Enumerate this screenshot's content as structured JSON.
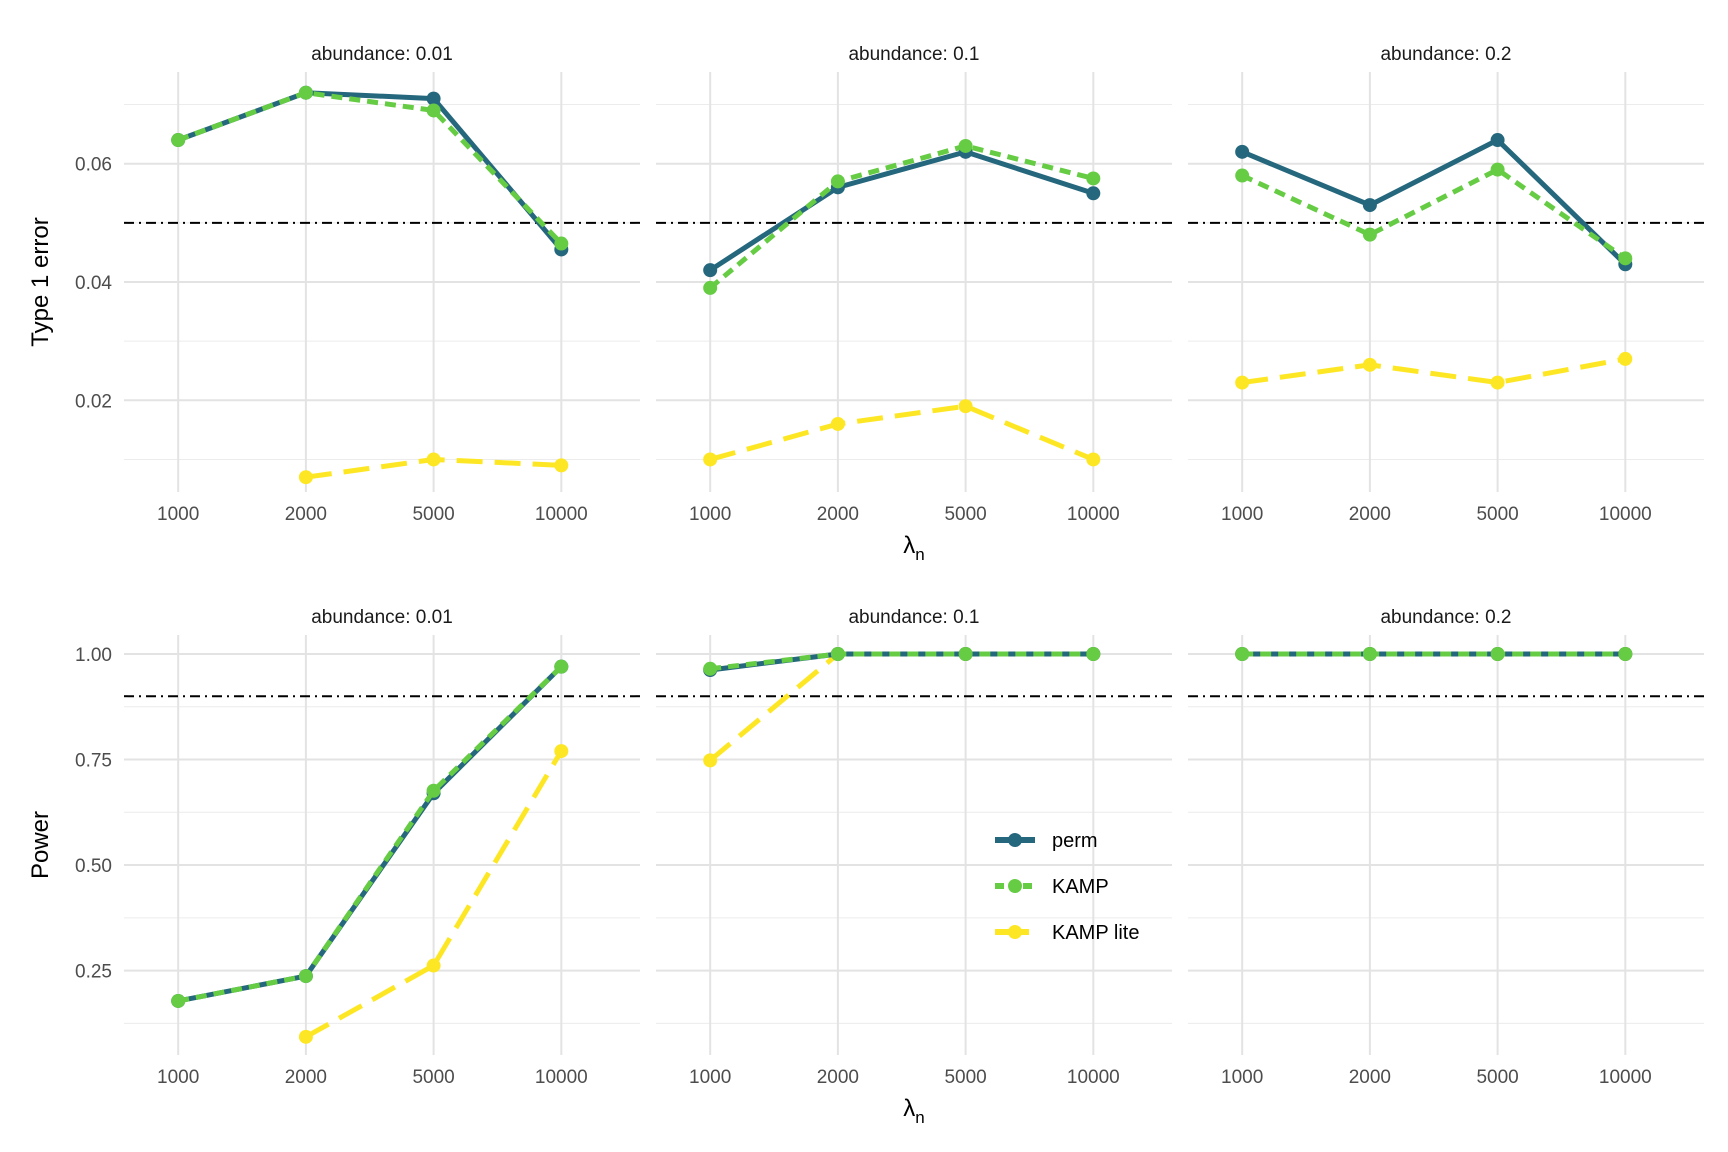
{
  "chart_data": {
    "type": "line",
    "x_categories": [
      "1000",
      "2000",
      "5000",
      "10000"
    ],
    "x_label": {
      "main": "λ",
      "sub": "n"
    },
    "series_styles": [
      {
        "name": "perm",
        "color": "#25677d",
        "dash": "solid"
      },
      {
        "name": "KAMP",
        "color": "#66cc44",
        "dash": "dashed"
      },
      {
        "name": "KAMP lite",
        "color": "#fde725",
        "dash": "longdash"
      }
    ],
    "legend": {
      "placement": "inside lower-right of bottom-middle panel",
      "entries": [
        "perm",
        "KAMP",
        "KAMP lite"
      ]
    },
    "rows": [
      {
        "ylabel": "Type 1 error",
        "ylim": [
          0.0045,
          0.0755
        ],
        "yticks": [
          0.02,
          0.04,
          0.06
        ],
        "ytick_labels": [
          "0.02",
          "0.04",
          "0.06"
        ],
        "yminor": [
          0.01,
          0.03,
          0.05,
          0.07
        ],
        "reference_line": 0.05,
        "panels": [
          {
            "title": "abundance: 0.01",
            "series": [
              {
                "name": "perm",
                "values": [
                  0.064,
                  0.072,
                  0.071,
                  0.0455
                ]
              },
              {
                "name": "KAMP",
                "values": [
                  0.064,
                  0.072,
                  0.069,
                  0.0465
                ]
              },
              {
                "name": "KAMP lite",
                "values": [
                  null,
                  0.007,
                  0.01,
                  0.009
                ]
              }
            ]
          },
          {
            "title": "abundance: 0.1",
            "series": [
              {
                "name": "perm",
                "values": [
                  0.042,
                  0.056,
                  0.062,
                  0.055
                ]
              },
              {
                "name": "KAMP",
                "values": [
                  0.039,
                  0.057,
                  0.063,
                  0.0575
                ]
              },
              {
                "name": "KAMP lite",
                "values": [
                  0.01,
                  0.016,
                  0.019,
                  0.01
                ]
              }
            ]
          },
          {
            "title": "abundance: 0.2",
            "series": [
              {
                "name": "perm",
                "values": [
                  0.062,
                  0.053,
                  0.064,
                  0.043
                ]
              },
              {
                "name": "KAMP",
                "values": [
                  0.058,
                  0.048,
                  0.059,
                  0.044
                ]
              },
              {
                "name": "KAMP lite",
                "values": [
                  0.023,
                  0.026,
                  0.023,
                  0.027
                ]
              }
            ]
          }
        ]
      },
      {
        "ylabel": "Power",
        "ylim": [
          0.05,
          1.045
        ],
        "yticks": [
          0.25,
          0.5,
          0.75,
          1.0
        ],
        "ytick_labels": [
          "0.25",
          "0.50",
          "0.75",
          "1.00"
        ],
        "yminor": [
          0.125,
          0.375,
          0.625,
          0.875
        ],
        "reference_line": 0.9,
        "panels": [
          {
            "title": "abundance: 0.01",
            "series": [
              {
                "name": "perm",
                "values": [
                  0.178,
                  0.237,
                  0.67,
                  0.97
                ]
              },
              {
                "name": "KAMP",
                "values": [
                  0.178,
                  0.237,
                  0.676,
                  0.97
                ]
              },
              {
                "name": "KAMP lite",
                "values": [
                  null,
                  0.093,
                  0.262,
                  0.77
                ]
              }
            ]
          },
          {
            "title": "abundance: 0.1",
            "series": [
              {
                "name": "perm",
                "values": [
                  0.962,
                  1.0,
                  1.0,
                  1.0
                ]
              },
              {
                "name": "KAMP",
                "values": [
                  0.965,
                  1.0,
                  1.0,
                  1.0
                ]
              },
              {
                "name": "KAMP lite",
                "values": [
                  0.748,
                  1.0,
                  1.0,
                  1.0
                ]
              }
            ]
          },
          {
            "title": "abundance: 0.2",
            "series": [
              {
                "name": "perm",
                "values": [
                  1.0,
                  1.0,
                  1.0,
                  1.0
                ]
              },
              {
                "name": "KAMP",
                "values": [
                  1.0,
                  1.0,
                  1.0,
                  1.0
                ]
              },
              {
                "name": "KAMP lite",
                "values": [
                  1.0,
                  1.0,
                  1.0,
                  1.0
                ]
              }
            ]
          }
        ]
      }
    ]
  }
}
